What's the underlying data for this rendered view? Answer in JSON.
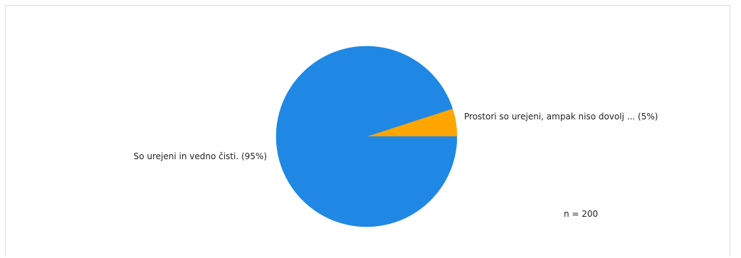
{
  "chart_data": {
    "type": "pie",
    "slices": [
      {
        "label": "So urejeni in vedno čisti. (95%)",
        "value": 95,
        "color": "#1f88e5"
      },
      {
        "label": "Prostori so urejeni, ampak niso dovolj ... (5%)",
        "value": 5,
        "color": "#ffa500"
      }
    ],
    "start": "3 o'clock, counterclockwise",
    "annotation": "n = 200"
  }
}
